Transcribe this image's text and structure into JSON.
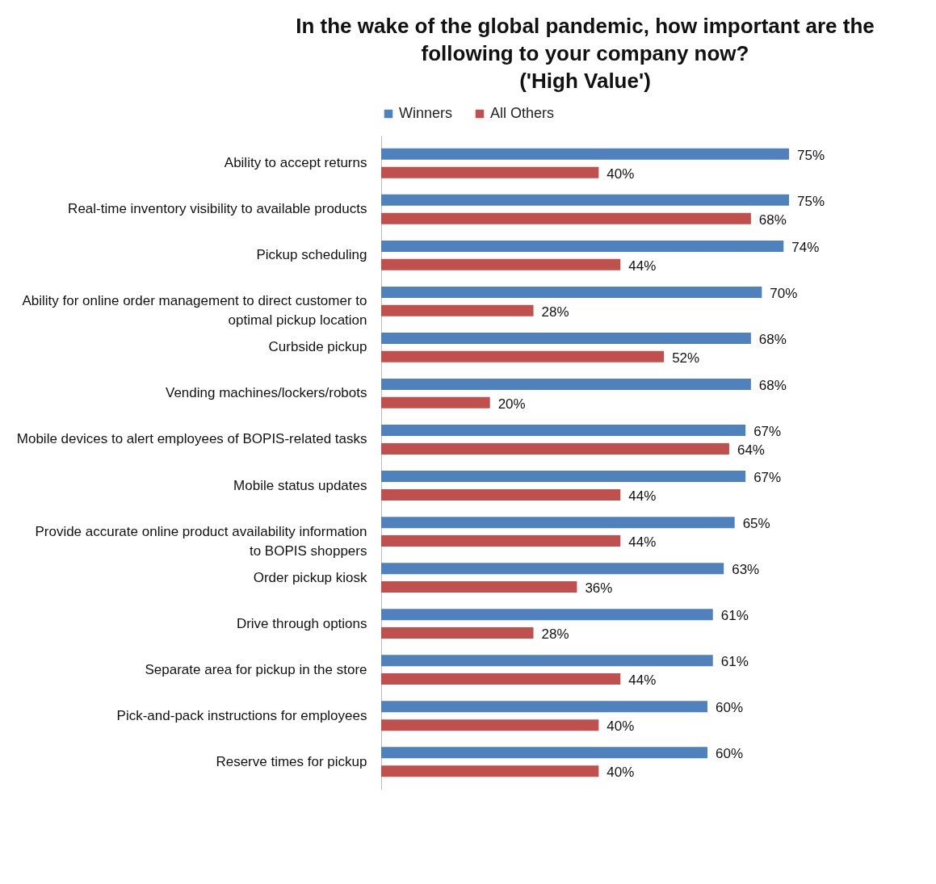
{
  "chart_data": {
    "type": "bar",
    "orientation": "horizontal",
    "title": "In the wake of the global pandemic, how important are the\nfollowing to your company now?\n('High Value')",
    "legend": "top",
    "categories": [
      "Ability to accept returns",
      "Real-time inventory visibility to available products",
      "Pickup scheduling",
      "Ability for online order management to direct customer to optimal pickup location",
      "Curbside pickup",
      "Vending machines/lockers/robots",
      "Mobile devices to alert employees of BOPIS-related tasks",
      "Mobile status updates",
      "Provide accurate online product availability information to BOPIS shoppers",
      "Order pickup kiosk",
      "Drive through options",
      "Separate area for pickup in the store",
      "Pick-and-pack instructions for employees",
      "Reserve times for pickup"
    ],
    "series": [
      {
        "name": "Winners",
        "color": "#4f81bd",
        "values": [
          75,
          75,
          74,
          70,
          68,
          68,
          67,
          67,
          65,
          63,
          61,
          61,
          60,
          60
        ],
        "value_labels": [
          "75%",
          "75%",
          "74%",
          "70%",
          "68%",
          "68%",
          "67%",
          "67%",
          "65%",
          "63%",
          "61%",
          "61%",
          "60%",
          "60%"
        ]
      },
      {
        "name": "All Others",
        "color": "#c0504d",
        "values": [
          40,
          68,
          44,
          28,
          52,
          20,
          64,
          44,
          44,
          36,
          28,
          44,
          40,
          40
        ],
        "value_labels": [
          "40%",
          "68%",
          "44%",
          "28%",
          "52%",
          "20%",
          "64%",
          "44%",
          "44%",
          "36%",
          "28%",
          "44%",
          "40%",
          "40%"
        ]
      }
    ]
  }
}
